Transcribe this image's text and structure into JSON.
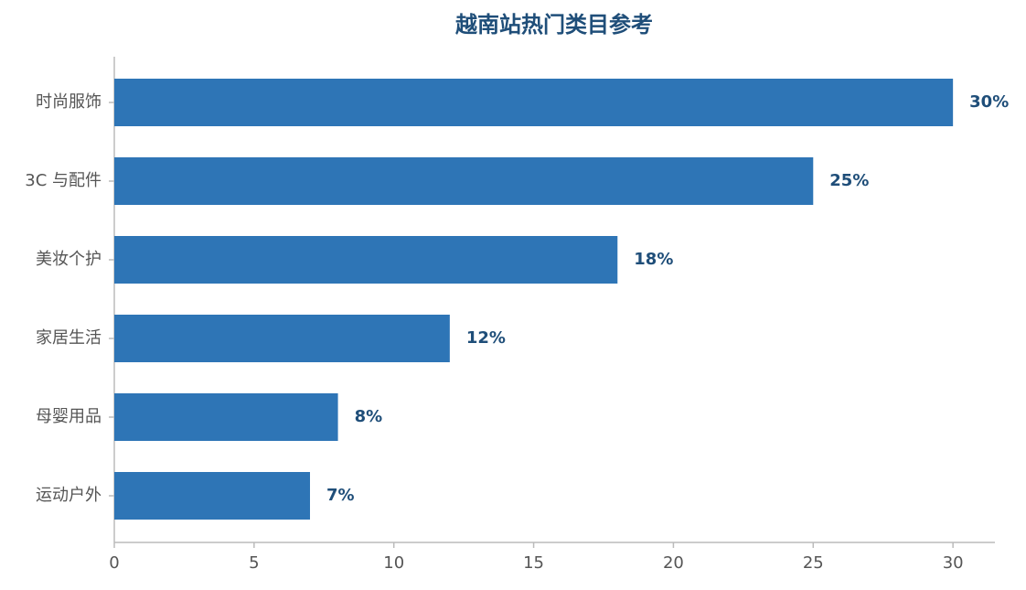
{
  "chart_data": {
    "type": "bar",
    "orientation": "horizontal",
    "title": "越南站热门类目参考",
    "categories": [
      "时尚服饰",
      "3C 与配件",
      "美妆个护",
      "家居生活",
      "母婴用品",
      "运动户外"
    ],
    "values": [
      30,
      25,
      18,
      12,
      8,
      7
    ],
    "value_labels": [
      "30%",
      "25%",
      "18%",
      "12%",
      "8%",
      "7%"
    ],
    "color": "#2e75b6",
    "xlim": [
      0,
      31.5
    ],
    "xticks": [
      0,
      5,
      10,
      15,
      20,
      25,
      30
    ],
    "grid": false
  }
}
